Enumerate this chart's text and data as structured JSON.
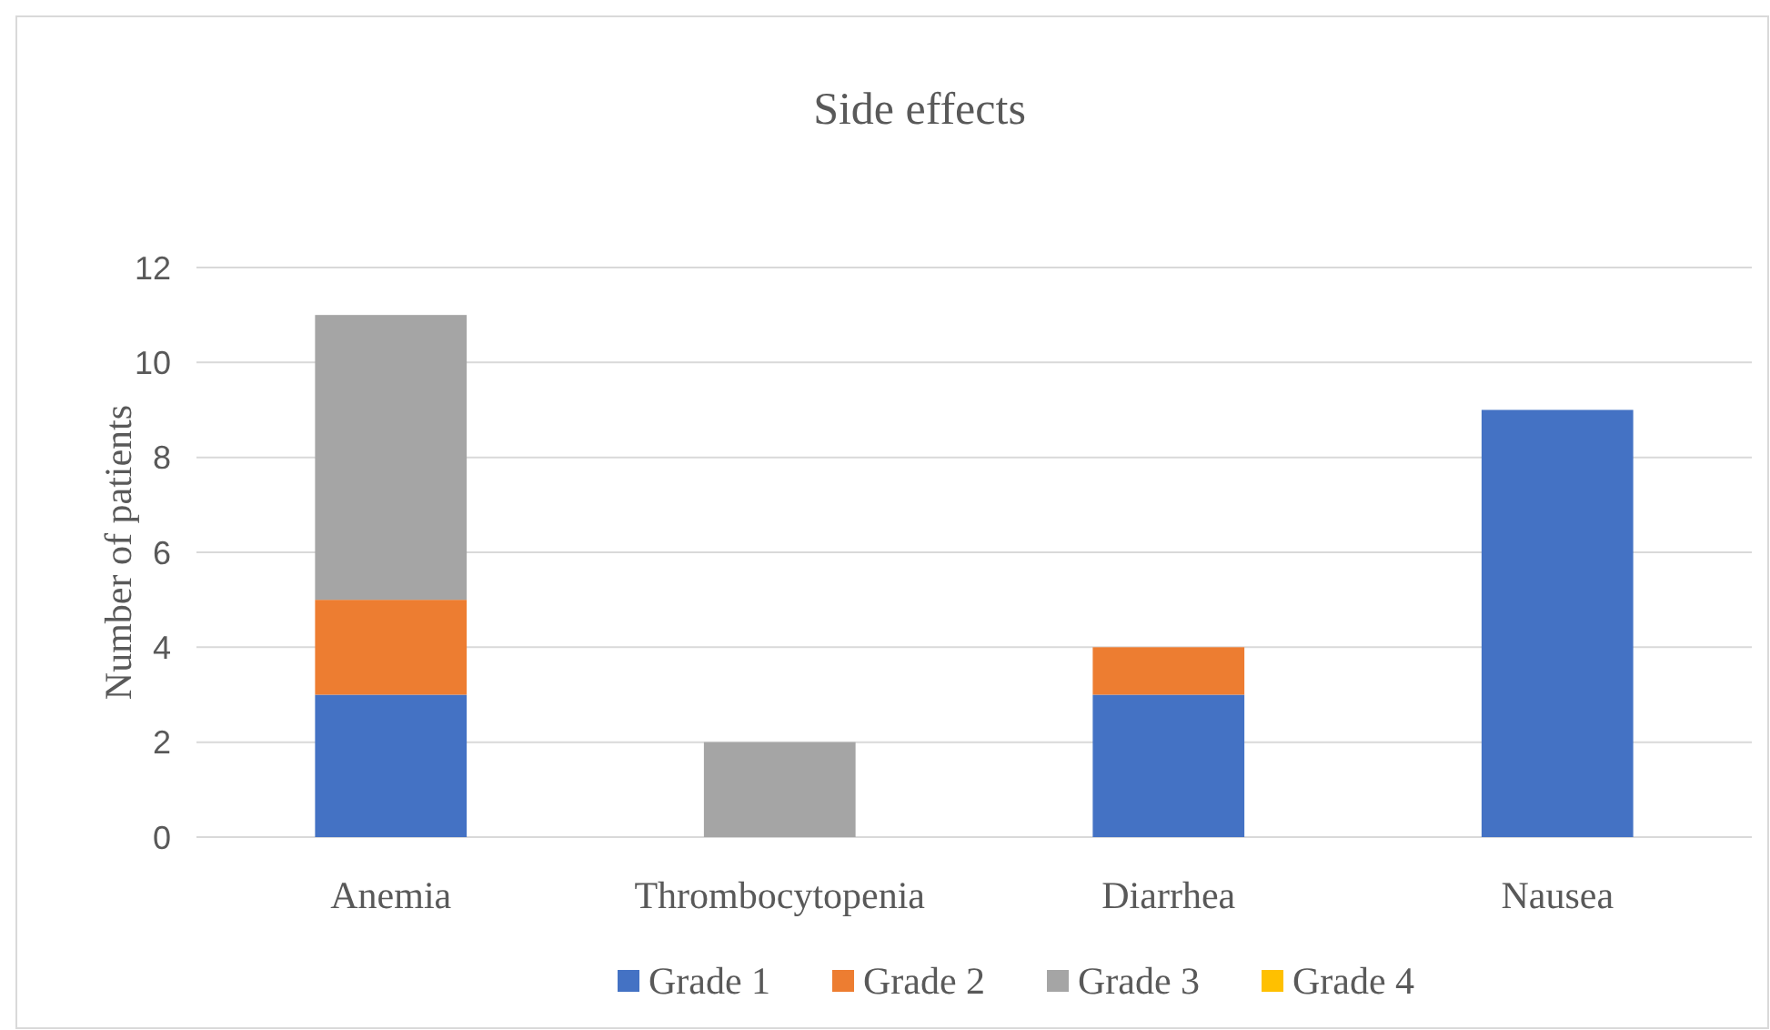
{
  "chart_data": {
    "type": "bar",
    "title": "Side effects",
    "ylabel": "Number of patients",
    "categories": [
      "Anemia",
      "Thrombocytopenia",
      "Diarrhea",
      "Nausea"
    ],
    "stacked": true,
    "ylim": [
      0,
      12
    ],
    "yticks": [
      0,
      2,
      4,
      6,
      8,
      10,
      12
    ],
    "grid": "y",
    "legend": "bottom",
    "series": [
      {
        "name": "Grade 1",
        "color": "#4472c4",
        "values": [
          3,
          0,
          3,
          9
        ]
      },
      {
        "name": "Grade 2",
        "color": "#ed7d31",
        "values": [
          2,
          0,
          1,
          0
        ]
      },
      {
        "name": "Grade 3",
        "color": "#a5a5a5",
        "values": [
          6,
          2,
          0,
          0
        ]
      },
      {
        "name": "Grade 4",
        "color": "#ffc000",
        "values": [
          0,
          0,
          0,
          0
        ]
      }
    ]
  }
}
